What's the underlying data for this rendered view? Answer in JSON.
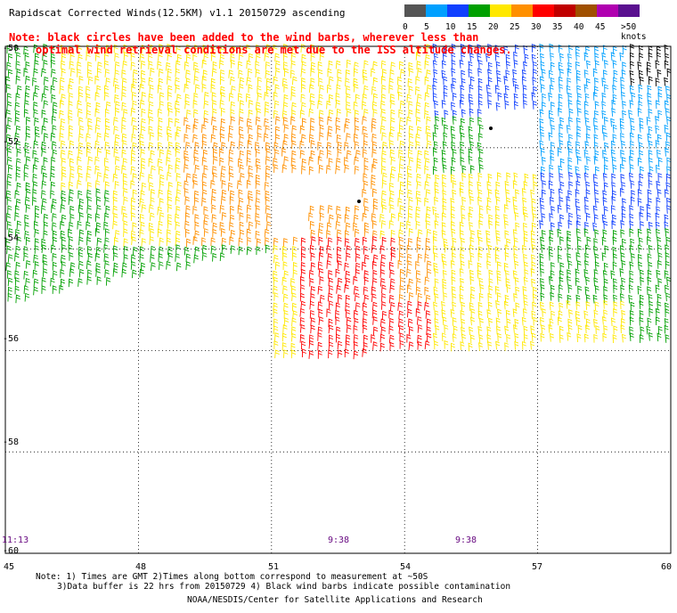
{
  "title": "Rapidscat Corrected Winds(12.5KM) v1.1 20150729 ascending",
  "note_line1": "Note: black circles have been added to the wind barbs, wherever less than",
  "note_line2": "optimal wind retrieval conditions are met due to the ISS altitude changes.",
  "legend": {
    "labels": [
      "0",
      "5",
      "10",
      "15",
      "20",
      "25",
      "30",
      "35",
      "40",
      "45",
      ">50 knots"
    ],
    "colors": [
      "#555555",
      "#00a0ff",
      "#1040ff",
      "#00a000",
      "#ffe800",
      "#ff9000",
      "#ff0000",
      "#c00000",
      "#a05000",
      "#b000b0",
      "#5a1090"
    ]
  },
  "lat_labels": [
    "-50",
    "-52",
    "-54",
    "-56",
    "-58",
    "-60"
  ],
  "lon_labels": [
    "45",
    "48",
    "51",
    "54",
    "57",
    "60"
  ],
  "time_labels": [
    {
      "text": "11:13"
    },
    {
      "text": "9:38"
    },
    {
      "text": "9:38"
    }
  ],
  "footnote_line1": "Note: 1) Times are GMT 2)Times along bottom correspond to measurement at ~50S",
  "footnote_line2": "3)Data buffer is 22 hrs from 20150729 4) Black wind barbs indicate possible contamination",
  "credit": "NOAA/NESDIS/Center for Satellite Applications and Research",
  "map": {
    "lon_range": [
      45,
      60
    ],
    "lat_range": [
      -50,
      -60
    ],
    "grid_lines": true,
    "grid_style": "dotted"
  }
}
